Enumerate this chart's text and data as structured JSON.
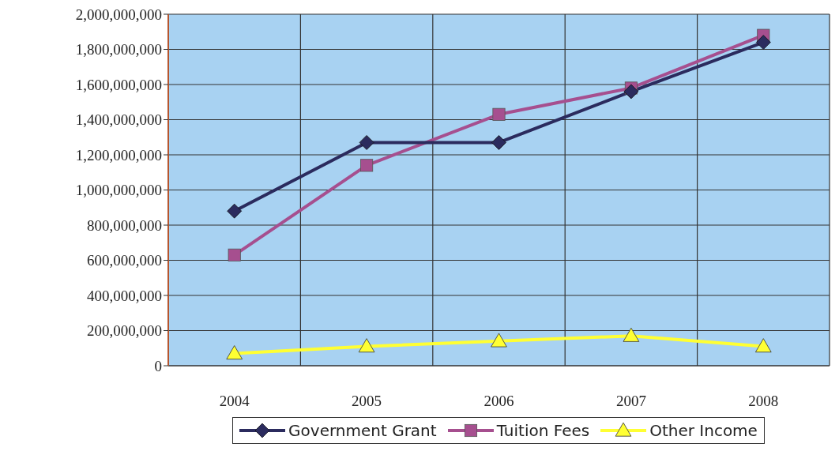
{
  "chart_data": {
    "type": "line",
    "categories": [
      "2004",
      "2005",
      "2006",
      "2007",
      "2008"
    ],
    "series": [
      {
        "name": "Government Grant",
        "color": "#2b2b5e",
        "marker": "diamond",
        "values": [
          880000000,
          1270000000,
          1270000000,
          1560000000,
          1840000000
        ]
      },
      {
        "name": "Tuition Fees",
        "color": "#a64f8f",
        "marker": "square",
        "values": [
          630000000,
          1140000000,
          1430000000,
          1580000000,
          1880000000
        ]
      },
      {
        "name": "Other Income",
        "color": "#ffff33",
        "marker": "triangle",
        "values": [
          70000000,
          110000000,
          140000000,
          170000000,
          110000000
        ]
      }
    ],
    "ylim": [
      0,
      2000000000
    ],
    "yticks": [
      {
        "value": 0,
        "label": "0"
      },
      {
        "value": 200000000,
        "label": "200,000,000"
      },
      {
        "value": 400000000,
        "label": "400,000,000"
      },
      {
        "value": 600000000,
        "label": "600,000,000"
      },
      {
        "value": 800000000,
        "label": "800,000,000"
      },
      {
        "value": 1000000000,
        "label": "1,000,000,000"
      },
      {
        "value": 1200000000,
        "label": "1,200,000,000"
      },
      {
        "value": 1400000000,
        "label": "1,400,000,000"
      },
      {
        "value": 1600000000,
        "label": "1,600,000,000"
      },
      {
        "value": 1800000000,
        "label": "1,800,000,000"
      },
      {
        "value": 2000000000,
        "label": "2,000,000,000"
      }
    ],
    "grid": true,
    "legend": "bottom"
  }
}
